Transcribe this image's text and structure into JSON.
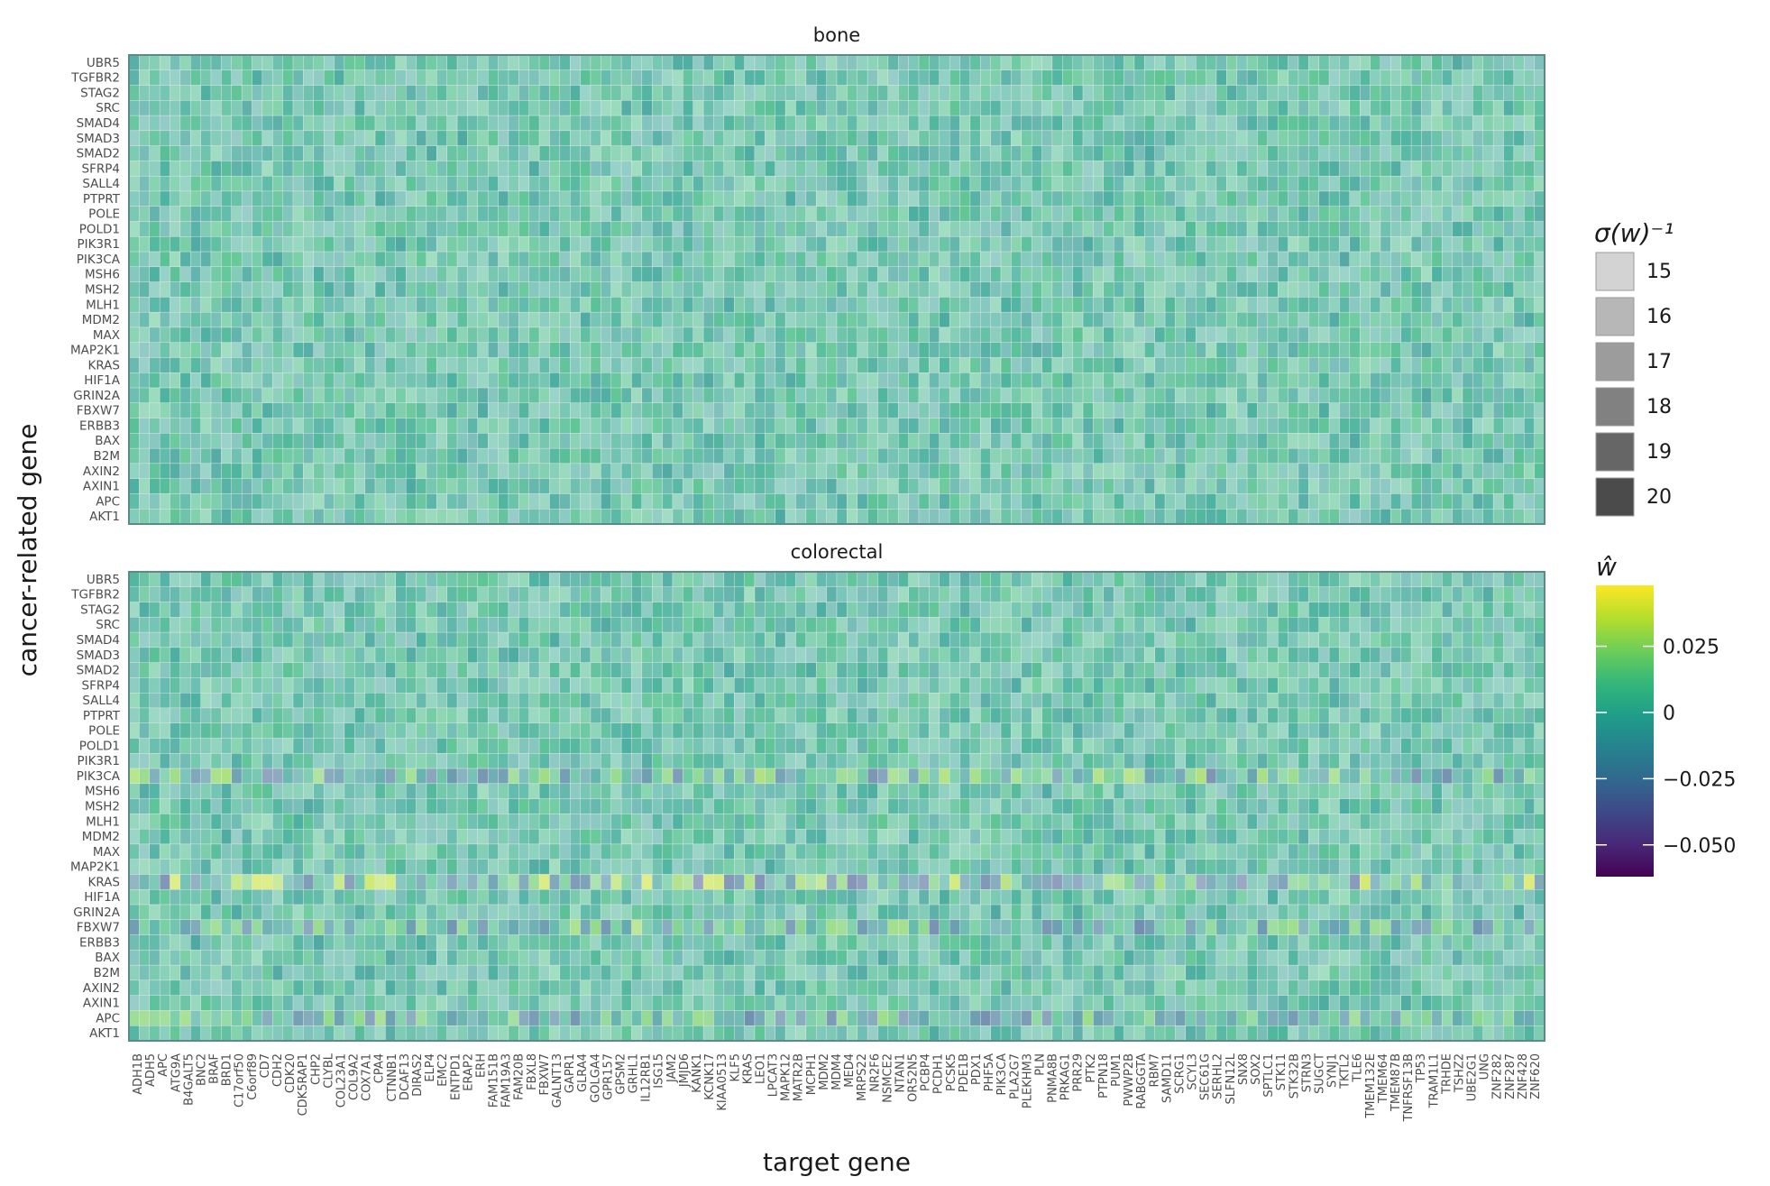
{
  "chart_data": {
    "type": "heatmap",
    "facets": [
      {
        "title": "bone",
        "value_range": [
          -0.006,
          0.012
        ],
        "alpha_range": [
          0.45,
          0.8
        ],
        "stripes": []
      },
      {
        "title": "colorectal",
        "value_range": [
          -0.006,
          0.012
        ],
        "alpha_range": [
          0.45,
          0.8
        ],
        "stripes": [
          {
            "row": "PIK3CA",
            "value_range": [
              -0.03,
              0.03
            ],
            "alpha": 0.55
          },
          {
            "row": "KRAS",
            "value_range": [
              -0.035,
              0.04
            ],
            "alpha": 0.5
          },
          {
            "row": "FBXW7",
            "value_range": [
              -0.03,
              0.028
            ],
            "alpha": 0.55
          },
          {
            "row": "APC",
            "value_range": [
              -0.03,
              0.025
            ],
            "alpha": 0.55
          }
        ]
      }
    ],
    "y_categories": [
      "UBR5",
      "TGFBR2",
      "STAG2",
      "SRC",
      "SMAD4",
      "SMAD3",
      "SMAD2",
      "SFRP4",
      "SALL4",
      "PTPRT",
      "POLE",
      "POLD1",
      "PIK3R1",
      "PIK3CA",
      "MSH6",
      "MSH2",
      "MLH1",
      "MDM2",
      "MAX",
      "MAP2K1",
      "KRAS",
      "HIF1A",
      "GRIN2A",
      "FBXW7",
      "ERBB3",
      "BAX",
      "B2M",
      "AXIN2",
      "AXIN1",
      "APC",
      "AKT1"
    ],
    "x_tick_labels": [
      "ADH1B",
      "ADH5",
      "APC",
      "ATG9A",
      "B4GALT5",
      "BNC2",
      "BRAF",
      "BRD1",
      "C17orf50",
      "C6orf89",
      "CD7",
      "CDH2",
      "CDK20",
      "CDK5RAP1",
      "CHP2",
      "CLYBL",
      "COL23A1",
      "COL9A2",
      "COX7A1",
      "CPA4",
      "CTNNB1",
      "DCAF13",
      "DIRAS2",
      "ELP4",
      "EMC2",
      "ENTPD1",
      "ERAP2",
      "ERH",
      "FAM151B",
      "FAM19A3",
      "FAM20B",
      "FBXL8",
      "FBXW7",
      "GALNT13",
      "GAPR1",
      "GLRA4",
      "GOLGA4",
      "GPR157",
      "GPSM2",
      "GRHL1",
      "IL12RB1",
      "ISG15",
      "JAM2",
      "JMJD6",
      "KANK1",
      "KCNK17",
      "KIAA0513",
      "KLF5",
      "KRAS",
      "LEO1",
      "LPCAT3",
      "MAPK12",
      "MATR2B",
      "MCPH1",
      "MDM2",
      "MDM4",
      "MED4",
      "MRPS22",
      "NR2F6",
      "NSMCE2",
      "NTAN1",
      "OR52N5",
      "PCBP4",
      "PCDH1",
      "PCSK5",
      "PDE1B",
      "PDX1",
      "PHF5A",
      "PIK3CA",
      "PLA2G7",
      "PLEKHM3",
      "PLN",
      "PNMA8B",
      "PRKAG1",
      "PRR29",
      "PTK2",
      "PTPN18",
      "PUM1",
      "PWWP2B",
      "RABGGTA",
      "RBM7",
      "SAMD11",
      "SCRG1",
      "SCYL3",
      "SEC61G",
      "SERHL2",
      "SLFN12L",
      "SNX8",
      "SOX2",
      "SPTLC1",
      "STK11",
      "STK32B",
      "STRN3",
      "SUGCT",
      "SYNJ1",
      "TKTL2",
      "TLE6",
      "TMEM132E",
      "TMEM64",
      "TMEM87B",
      "TNFRSF13B",
      "TP53",
      "TRAM1L1",
      "TRHDE",
      "TSHZ2",
      "UBE2G1",
      "UNG",
      "ZNF282",
      "ZNF287",
      "ZNF428",
      "ZNF620"
    ],
    "n_columns": 138,
    "xlabel": "target gene",
    "ylabel": "cancer-related gene",
    "legend_alpha": {
      "title": "σ(w)⁻¹",
      "items": [
        {
          "label": "15",
          "gray": "#d3d3d3"
        },
        {
          "label": "16",
          "gray": "#b7b7b7"
        },
        {
          "label": "17",
          "gray": "#9c9c9c"
        },
        {
          "label": "18",
          "gray": "#818181"
        },
        {
          "label": "19",
          "gray": "#666666"
        },
        {
          "label": "20",
          "gray": "#4b4b4b"
        }
      ]
    },
    "legend_color": {
      "title": "ŵ",
      "domain": [
        -0.062,
        0.048
      ],
      "ticks": [
        {
          "value": 0.025,
          "label": "0.025"
        },
        {
          "value": 0,
          "label": "0"
        },
        {
          "value": -0.025,
          "label": "−0.025"
        },
        {
          "value": -0.05,
          "label": "−0.050"
        }
      ]
    },
    "colors": {
      "viridis": [
        "#440154",
        "#482878",
        "#3e4989",
        "#31688e",
        "#26828e",
        "#1f9e89",
        "#35b779",
        "#6ece58",
        "#b5de2b",
        "#fde725"
      ],
      "panel_border": "#5c8a87",
      "grid": "#ebebeb"
    },
    "legend_placement": "right"
  }
}
